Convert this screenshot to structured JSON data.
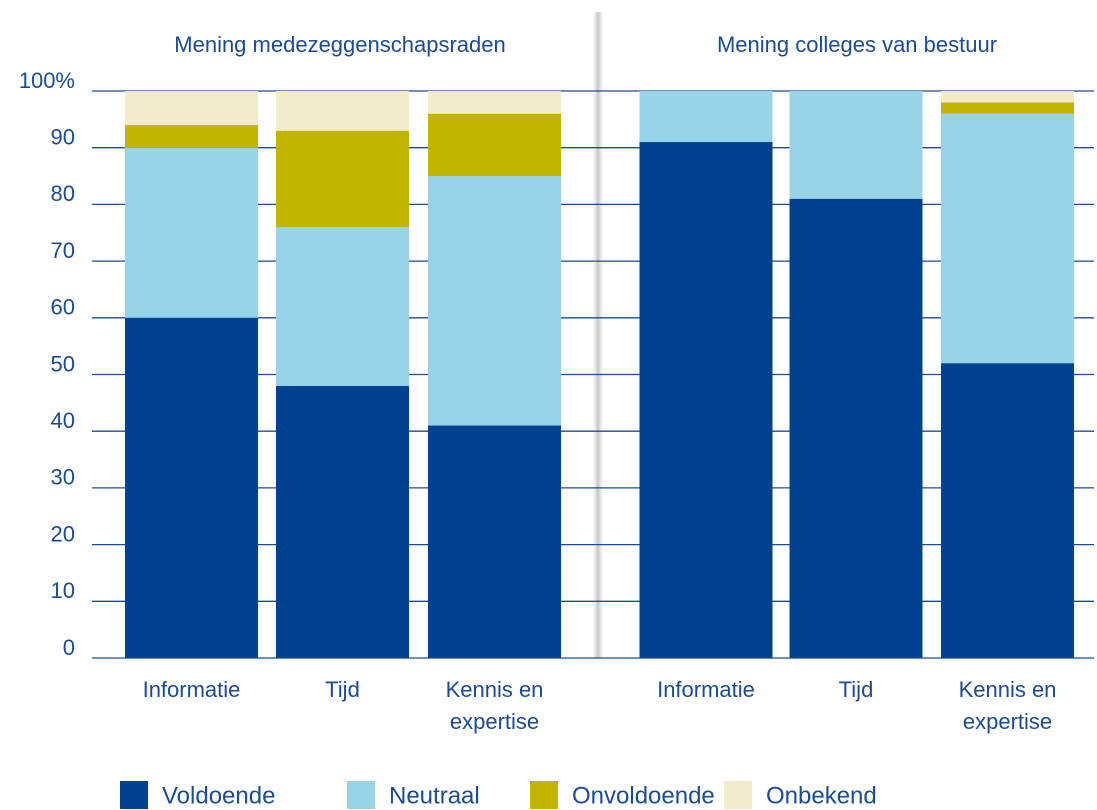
{
  "chart_data": {
    "type": "stacked_bar",
    "group_titles": [
      "Mening medezeggenschapsraden",
      "Mening colleges van bestuur"
    ],
    "categories": [
      "Informatie",
      "Tijd",
      "Kennis en expertise",
      "Informatie",
      "Tijd",
      "Kennis en expertise"
    ],
    "series": [
      {
        "name": "Voldoende",
        "color": "#00428f",
        "values": [
          60,
          48,
          41,
          91,
          81,
          52
        ]
      },
      {
        "name": "Neutraal",
        "color": "#98d3e8",
        "values": [
          30,
          28,
          44,
          9,
          19,
          44
        ]
      },
      {
        "name": "Onvoldoende",
        "color": "#c3b400",
        "values": [
          4,
          17,
          11,
          0,
          0,
          2
        ]
      },
      {
        "name": "Onbekend",
        "color": "#f2ecca",
        "values": [
          6,
          7,
          4,
          0,
          0,
          2
        ]
      }
    ],
    "ylim": [
      0,
      100
    ],
    "yticks": [
      0,
      10,
      20,
      30,
      40,
      50,
      60,
      70,
      80,
      90,
      {
        "value": 100,
        "label": "100%"
      }
    ],
    "grid": true
  }
}
